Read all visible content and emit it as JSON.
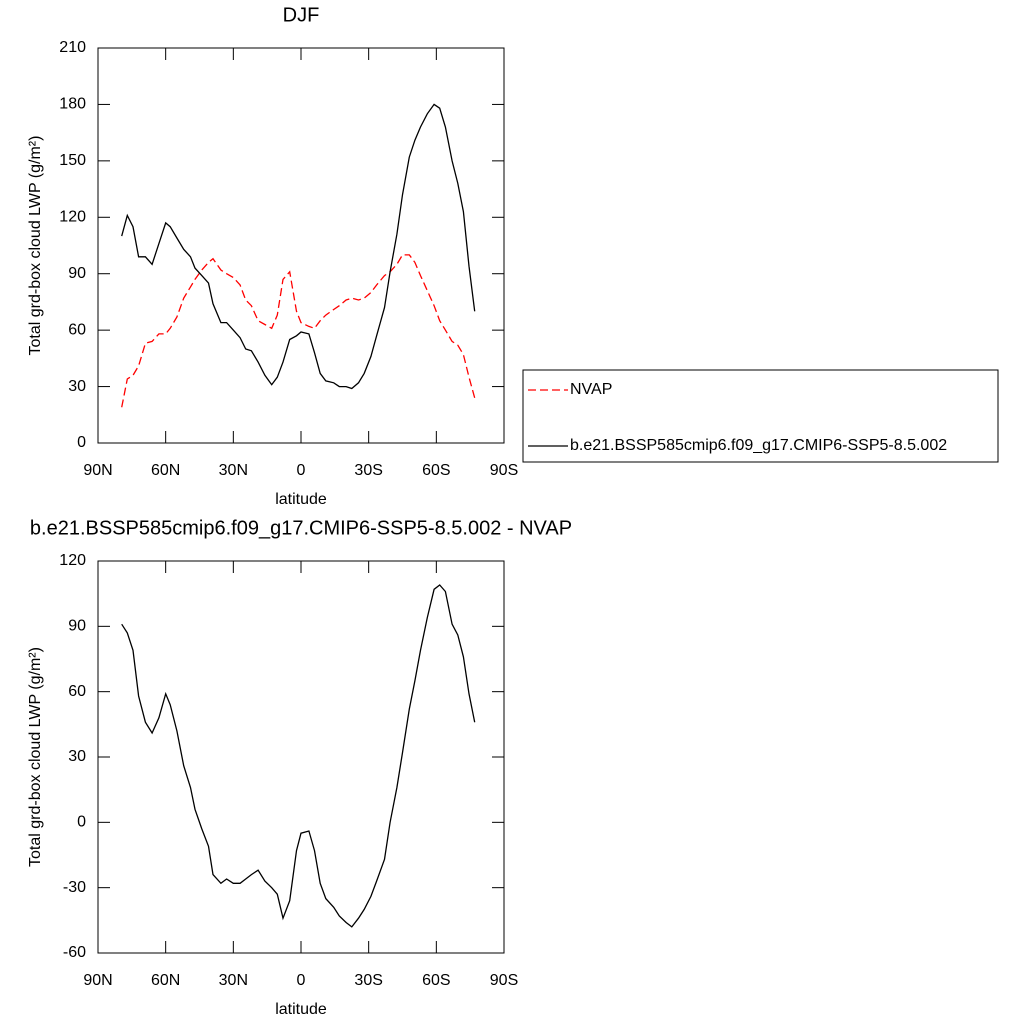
{
  "chart_data": [
    {
      "type": "line",
      "title": "DJF",
      "xlabel": "latitude",
      "ylabel": "Total grd-box cloud LWP (g/m²)",
      "x": [
        79.5,
        77,
        74.5,
        72,
        69,
        66,
        63,
        60,
        58,
        55,
        52,
        49,
        47,
        44,
        41,
        39,
        35.5,
        33,
        30,
        27,
        24.5,
        22,
        19,
        16,
        13,
        10.5,
        8,
        5,
        2,
        0,
        -3.5,
        -6,
        -8.5,
        -11,
        -14.5,
        -17,
        -20,
        -22.5,
        -25.5,
        -28,
        -31,
        -33.5,
        -37,
        -39.5,
        -42.5,
        -45,
        -48,
        -50.5,
        -53,
        -56,
        -59,
        -61.5,
        -64,
        -67,
        -69.5,
        -72,
        -74.5,
        -77
      ],
      "xlim": [
        90,
        -90
      ],
      "xticks": [
        {
          "value": 90,
          "label": "90N"
        },
        {
          "value": 60,
          "label": "60N"
        },
        {
          "value": 30,
          "label": "30N"
        },
        0,
        {
          "value": -30,
          "label": "30S"
        },
        {
          "value": -60,
          "label": "60S"
        },
        {
          "value": -90,
          "label": "90S"
        }
      ],
      "ylim": [
        0,
        210
      ],
      "yticks": [
        0,
        30,
        60,
        90,
        120,
        150,
        180,
        210
      ],
      "legend": "outside right",
      "series": [
        {
          "name": "NVAP",
          "color": "#ff0000",
          "line_style": "dashed",
          "values": [
            19,
            34,
            36,
            41,
            53,
            54,
            58,
            58,
            61,
            67,
            77,
            83,
            87,
            92,
            96,
            98,
            92,
            90,
            88,
            84,
            76,
            73,
            65,
            63,
            61,
            68,
            87,
            91,
            70,
            64,
            62,
            61,
            65,
            68,
            71,
            73,
            76,
            77,
            76,
            77,
            80,
            84,
            89,
            91,
            95,
            100,
            100,
            96,
            89,
            81,
            73,
            65,
            60,
            54,
            52,
            47,
            35,
            24
          ]
        },
        {
          "name": "b.e21.BSSP585cmip6.f09_g17.CMIP6-SSP5-8.5.002",
          "color": "#000000",
          "line_style": "solid",
          "values": [
            110,
            121,
            115,
            99,
            99,
            95,
            106,
            117,
            115,
            109,
            103,
            99,
            93,
            89,
            85,
            74,
            64,
            64,
            60,
            56,
            50,
            49,
            43,
            36,
            31,
            35,
            43,
            55,
            57,
            59,
            58,
            48,
            37,
            33,
            32,
            30,
            30,
            29,
            32,
            37,
            46,
            57,
            72,
            91,
            111,
            132,
            152,
            161,
            168,
            175,
            180,
            178,
            168,
            150,
            138,
            123,
            94,
            70
          ]
        }
      ]
    },
    {
      "type": "line",
      "title": "b.e21.BSSP585cmip6.f09_g17.CMIP6-SSP5-8.5.002 - NVAP",
      "xlabel": "latitude",
      "ylabel": "Total grd-box cloud LWP (g/m²)",
      "x": [
        79.5,
        77,
        74.5,
        72,
        69,
        66,
        63,
        60,
        58,
        55,
        52,
        49,
        47,
        44,
        41,
        39,
        35.5,
        33,
        30,
        27,
        24.5,
        22,
        19,
        16,
        13,
        10.5,
        8,
        5,
        2,
        0,
        -3.5,
        -6,
        -8.5,
        -11,
        -14.5,
        -17,
        -20,
        -22.5,
        -25.5,
        -28,
        -31,
        -33.5,
        -37,
        -39.5,
        -42.5,
        -45,
        -48,
        -50.5,
        -53,
        -56,
        -59,
        -61.5,
        -64,
        -67,
        -69.5,
        -72,
        -74.5,
        -77
      ],
      "xlim": [
        90,
        -90
      ],
      "xticks": [
        {
          "value": 90,
          "label": "90N"
        },
        {
          "value": 60,
          "label": "60N"
        },
        {
          "value": 30,
          "label": "30N"
        },
        0,
        {
          "value": -30,
          "label": "30S"
        },
        {
          "value": -60,
          "label": "60S"
        },
        {
          "value": -90,
          "label": "90S"
        }
      ],
      "ylim": [
        -60,
        120
      ],
      "yticks": [
        -60,
        -30,
        0,
        30,
        60,
        90,
        120
      ],
      "series": [
        {
          "color": "#000000",
          "line_style": "solid",
          "values": [
            91,
            87,
            79,
            58,
            46,
            41,
            48,
            59,
            54,
            42,
            26,
            16,
            6,
            -3,
            -11,
            -24,
            -28,
            -26,
            -28,
            -28,
            -26,
            -24,
            -22,
            -27,
            -30,
            -33,
            -44,
            -36,
            -13,
            -5,
            -4,
            -13,
            -28,
            -35,
            -39,
            -43,
            -46,
            -48,
            -44,
            -40,
            -34,
            -27,
            -17,
            0,
            16,
            32,
            52,
            65,
            79,
            94,
            107,
            109,
            106,
            91,
            86,
            76,
            59,
            46
          ]
        }
      ]
    }
  ]
}
